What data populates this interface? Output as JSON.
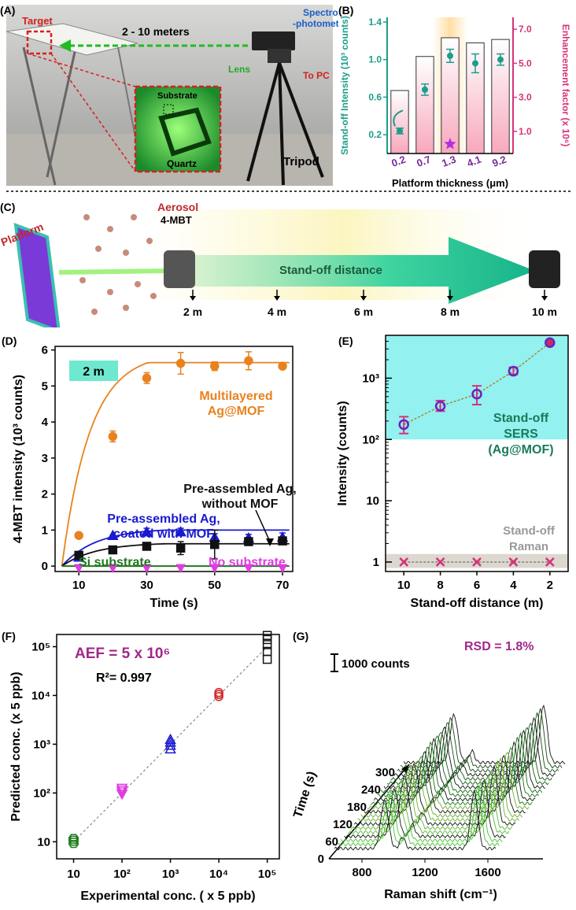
{
  "panels": {
    "A": {
      "label": "(A)",
      "target": "Target",
      "distance": "2 - 10 meters",
      "spectro_line1": "Spectro",
      "spectro_line2": "-photometer",
      "lens": "Lens",
      "to_pc": "To PC",
      "substrate": "Substrate",
      "quartz": "Quartz",
      "tripod": "Tripod"
    },
    "C": {
      "label": "(C)",
      "platform": "Platform",
      "aerosol": "Aerosol",
      "analyte": "4-MBT",
      "standoff": "Stand-off distance",
      "ticks": [
        "2 m",
        "4 m",
        "6 m",
        "8 m",
        "10 m"
      ]
    },
    "G": {
      "label": "(G)",
      "scale_bar": "1000 counts",
      "rsd": "RSD = 1.8%",
      "xlabel": "Raman shift (cm⁻¹)",
      "ylabel": "Time (s)",
      "xticks": [
        "800",
        "1200",
        "1600"
      ],
      "yticks": [
        "0",
        "60",
        "120",
        "180",
        "240",
        "300"
      ]
    }
  },
  "colors": {
    "teal": "#1b9e8a",
    "pink": "#d6337a",
    "orange": "#e8821e",
    "blue": "#1a1ad0",
    "black": "#111111",
    "green": "#1e7a1e",
    "magenta": "#e03ce0",
    "red": "#d42020",
    "purple": "#7a2a9a"
  },
  "chart_data": [
    {
      "id": "B",
      "label": "(B)",
      "type": "bar",
      "xlabel": "Platform thickness (μm)",
      "ylabel_left": "Stand-off Intensity (10³ counts)",
      "ylabel_right": "Enhancement factor (x 10⁶)",
      "categories": [
        "0.2",
        "0.7",
        "1.3",
        "4.1",
        "9.2"
      ],
      "ylim_left": [
        0,
        1.45
      ],
      "yticks_left": [
        "0.2",
        "0.6",
        "1.0",
        "1.4"
      ],
      "ylim_right": [
        -0.3,
        7.7
      ],
      "yticks_right": [
        "1.0",
        "3.0",
        "5.0",
        "7.0"
      ],
      "bars_right": [
        3.4,
        5.4,
        6.5,
        6.2,
        6.4
      ],
      "points_left": [
        0.24,
        0.68,
        1.04,
        0.96,
        1.0
      ],
      "errors_left": [
        0.03,
        0.06,
        0.07,
        0.1,
        0.06
      ],
      "highlight_category": "1.3"
    },
    {
      "id": "D",
      "label": "(D)",
      "type": "line",
      "badge": "2 m",
      "xlabel": "Time  (s)",
      "ylabel": "4-MBT intensity (10³ counts)",
      "xlim": [
        3,
        73
      ],
      "xticks": [
        10,
        30,
        50,
        70
      ],
      "ylim": [
        -0.15,
        6.1
      ],
      "yticks": [
        0,
        1,
        2,
        3,
        4,
        5,
        6
      ],
      "x": [
        10,
        20,
        30,
        40,
        50,
        60,
        70
      ],
      "series": [
        {
          "name": "Multilayered Ag@MOF",
          "label_lines": [
            "Multilayered",
            "Ag@MOF"
          ],
          "marker": "circle",
          "color": "#e8821e",
          "values": [
            0.85,
            3.6,
            5.22,
            5.63,
            5.55,
            5.7,
            5.55
          ],
          "errors": [
            0,
            0.15,
            0.15,
            0.3,
            0.12,
            0.25,
            0
          ]
        },
        {
          "name": "Pre-assembled Ag, coated with MOF",
          "label_lines": [
            "Pre-assembled Ag,",
            "coated with MOF"
          ],
          "marker": "triangle",
          "color": "#1a1ad0",
          "values": [
            0.25,
            0.85,
            0.95,
            0.95,
            0.8,
            0.78,
            0.8
          ],
          "errors": [
            0,
            0,
            0.1,
            0.1,
            0.1,
            0.1,
            0.12
          ]
        },
        {
          "name": "Pre-assembled Ag, without MOF",
          "label_lines": [
            "Pre-assembled Ag,",
            "without MOF"
          ],
          "marker": "square",
          "color": "#111111",
          "values": [
            0.3,
            0.45,
            0.55,
            0.5,
            0.6,
            0.68,
            0.7
          ],
          "errors": [
            0.08,
            0,
            0.08,
            0.18,
            0.4,
            0.08,
            0.1
          ]
        },
        {
          "name": "Si substrate",
          "label_lines": [
            "Si substrate"
          ],
          "marker": "none",
          "color": "#1e7a1e",
          "values": [
            0,
            0,
            0,
            0,
            0,
            0,
            0
          ],
          "errors": []
        },
        {
          "name": "No substrate",
          "label_lines": [
            "No substrate"
          ],
          "marker": "tri-down",
          "color": "#e03ce0",
          "values": [
            -0.05,
            -0.05,
            -0.05,
            -0.05,
            -0.05,
            -0.05,
            -0.05
          ],
          "errors": []
        }
      ]
    },
    {
      "id": "E",
      "label": "(E)",
      "type": "scatter",
      "xlabel": "Stand-off  distance (m)",
      "ylabel": "Intensity (counts)",
      "yscale": "log",
      "ylim": [
        0.7,
        5000
      ],
      "yticks": [
        "1",
        "10",
        "10²",
        "10³"
      ],
      "categories": [
        "10",
        "8",
        "6",
        "4",
        "2"
      ],
      "sers_values": [
        175,
        350,
        550,
        1300,
        3800
      ],
      "sers_err_lo": [
        50,
        60,
        180,
        150,
        0
      ],
      "sers_err_hi": [
        60,
        80,
        200,
        200,
        0
      ],
      "raman_values": [
        1,
        1,
        1,
        1,
        1
      ],
      "region_sers_label": [
        "Stand-off",
        "SERS",
        "(Ag@MOF)"
      ],
      "region_raman_label": [
        "Stand-off",
        "Raman"
      ]
    },
    {
      "id": "F",
      "label": "(F)",
      "type": "scatter",
      "xlabel": "Experimental conc. ( x 5 ppb)",
      "ylabel": "Predicted conc. (x 5 ppb)",
      "xscale": "log",
      "yscale": "log",
      "aef": "AEF = 5 x 10⁶",
      "r2": "R²= 0.997",
      "xticks": [
        "10",
        "10²",
        "10³",
        "10⁴",
        "10⁵"
      ],
      "yticks": [
        "10",
        "10²",
        "10³",
        "10⁴",
        "10⁵"
      ],
      "groups": [
        {
          "x": 10,
          "y": [
            9,
            10,
            11,
            12
          ],
          "marker": "hexagon",
          "color": "#1e7a1e"
        },
        {
          "x": 100,
          "y": [
            95,
            105,
            115,
            125
          ],
          "marker": "tri-down",
          "color": "#e03ce0"
        },
        {
          "x": 1000,
          "y": [
            800,
            950,
            1100,
            1250
          ],
          "marker": "triangle",
          "color": "#1a1ad0"
        },
        {
          "x": 10000,
          "y": [
            9500,
            10500,
            11500
          ],
          "marker": "circle",
          "color": "#d42020"
        },
        {
          "x": 100000,
          "y": [
            55000,
            80000,
            110000,
            140000,
            170000
          ],
          "marker": "square",
          "color": "#111111"
        }
      ]
    }
  ]
}
